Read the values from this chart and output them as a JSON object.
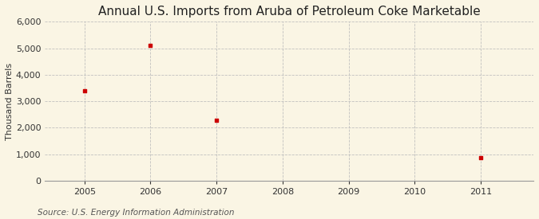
{
  "title": "Annual U.S. Imports from Aruba of Petroleum Coke Marketable",
  "ylabel": "Thousand Barrels",
  "source": "Source: U.S. Energy Information Administration",
  "x_values": [
    2005,
    2006,
    2007,
    2011
  ],
  "y_values": [
    3390,
    5100,
    2280,
    880
  ],
  "marker_color": "#CC0000",
  "marker_style": "s",
  "marker_size": 3.5,
  "xlim": [
    2004.4,
    2011.8
  ],
  "ylim": [
    0,
    6000
  ],
  "yticks": [
    0,
    1000,
    2000,
    3000,
    4000,
    5000,
    6000
  ],
  "xticks": [
    2005,
    2006,
    2007,
    2008,
    2009,
    2010,
    2011
  ],
  "background_color": "#FAF5E4",
  "grid_color": "#BBBBBB",
  "title_fontsize": 11,
  "label_fontsize": 8,
  "tick_fontsize": 8,
  "source_fontsize": 7.5
}
